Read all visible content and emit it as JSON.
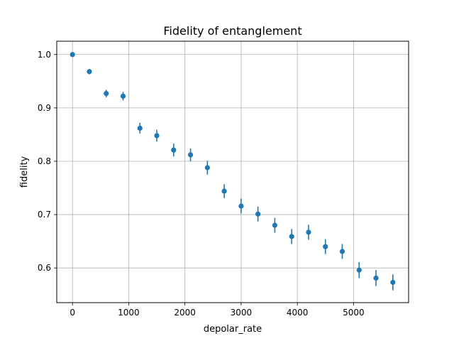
{
  "chart_data": {
    "type": "scatter",
    "title": "Fidelity of entanglement",
    "xlabel": "depolar_rate",
    "ylabel": "fidelity",
    "xlim": [
      -280,
      5980
    ],
    "ylim": [
      0.535,
      1.025
    ],
    "x_ticks": [
      0,
      1000,
      2000,
      3000,
      4000,
      5000
    ],
    "y_ticks": [
      0.6,
      0.7,
      0.8,
      0.9,
      1.0
    ],
    "x_tick_labels": [
      "0",
      "1000",
      "2000",
      "3000",
      "4000",
      "5000"
    ],
    "y_tick_labels": [
      "0.6",
      "0.7",
      "0.8",
      "0.9",
      "1.0"
    ],
    "grid": true,
    "marker_color": "#1f77b4",
    "series": [
      {
        "x": [
          0,
          300,
          600,
          900,
          1200,
          1500,
          1800,
          2100,
          2400,
          2700,
          3000,
          3300,
          3600,
          3900,
          4200,
          4500,
          4800,
          5100,
          5400,
          5700
        ],
        "y": [
          1.0,
          0.968,
          0.927,
          0.922,
          0.862,
          0.848,
          0.821,
          0.812,
          0.788,
          0.744,
          0.716,
          0.701,
          0.68,
          0.659,
          0.667,
          0.64,
          0.631,
          0.596,
          0.581,
          0.573
        ],
        "yerr": [
          0.0,
          0.005,
          0.007,
          0.008,
          0.01,
          0.011,
          0.012,
          0.012,
          0.013,
          0.013,
          0.014,
          0.014,
          0.014,
          0.014,
          0.014,
          0.014,
          0.014,
          0.015,
          0.015,
          0.015
        ]
      }
    ]
  }
}
